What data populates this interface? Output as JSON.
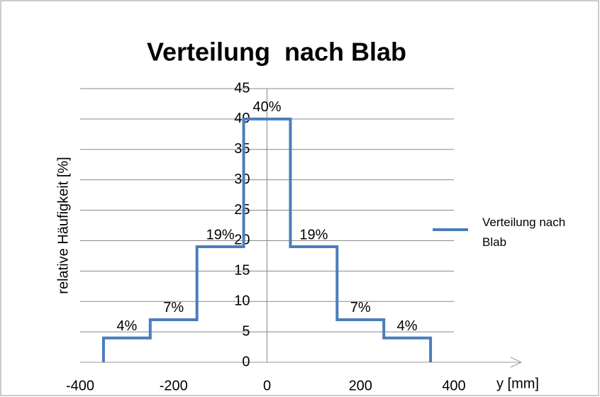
{
  "chart_data": {
    "type": "line",
    "title": "Verteilung  nach Blab",
    "x_label": "y [mm]",
    "y_label": "relative Häufigkeit [%]",
    "x": [
      -350,
      -350,
      -250,
      -250,
      -150,
      -150,
      -50,
      -50,
      50,
      50,
      150,
      150,
      250,
      250,
      350,
      350
    ],
    "series": [
      {
        "name": "Verteilung nach Blab",
        "color": "#4a7ebb",
        "values": [
          0,
          4,
          4,
          7,
          7,
          19,
          19,
          40,
          40,
          19,
          19,
          7,
          7,
          4,
          4,
          0
        ]
      }
    ],
    "data_labels": [
      {
        "x": -300,
        "value": 4,
        "label": "4%"
      },
      {
        "x": -200,
        "value": 7,
        "label": "7%"
      },
      {
        "x": -100,
        "value": 19,
        "label": "19%"
      },
      {
        "x": 0,
        "value": 40,
        "label": "40%"
      },
      {
        "x": 100,
        "value": 19,
        "label": "19%"
      },
      {
        "x": 200,
        "value": 7,
        "label": "7%"
      },
      {
        "x": 300,
        "value": 4,
        "label": "4%"
      }
    ],
    "xlim": [
      -400,
      400
    ],
    "xticks": [
      -400,
      -200,
      0,
      200,
      400
    ],
    "ylim": [
      0,
      45
    ],
    "yticks": [
      0,
      5,
      10,
      15,
      20,
      25,
      30,
      35,
      40,
      45
    ],
    "grid": true,
    "legend": "right"
  }
}
